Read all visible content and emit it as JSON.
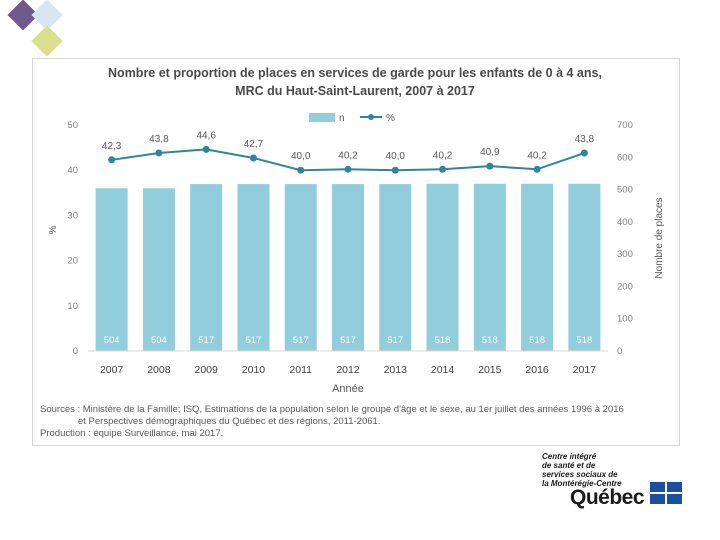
{
  "header": {
    "title_line1": "Nombre et proportion de places en services de garde pour les enfants de 0 à 4 ans,",
    "title_line2": "MRC du Haut-Saint-Laurent, 2007 à 2017"
  },
  "chart_data": {
    "type": "bar+line",
    "title": "Nombre et proportion de places en services de garde pour les enfants de 0 à 4 ans, MRC du Haut-Saint-Laurent, 2007 à 2017",
    "categories": [
      "2007",
      "2008",
      "2009",
      "2010",
      "2011",
      "2012",
      "2013",
      "2014",
      "2015",
      "2016",
      "2017"
    ],
    "series": [
      {
        "name": "n",
        "type": "bar",
        "axis": "right",
        "values": [
          504,
          504,
          517,
          517,
          517,
          517,
          517,
          518,
          518,
          518,
          518
        ],
        "labels": [
          "504",
          "504",
          "517",
          "517",
          "517",
          "517",
          "517",
          "518",
          "518",
          "518",
          "518"
        ],
        "color": "#92cddc"
      },
      {
        "name": "%",
        "type": "line",
        "axis": "left",
        "values": [
          42.3,
          43.8,
          44.6,
          42.7,
          40.0,
          40.2,
          40.0,
          40.2,
          40.9,
          40.2,
          43.8
        ],
        "labels": [
          "42,3",
          "43,8",
          "44,6",
          "42,7",
          "40,0",
          "40,2",
          "40,0",
          "40,2",
          "40,9",
          "40,2",
          "43,8"
        ],
        "color": "#31849b"
      }
    ],
    "xlabel": "Année",
    "ylabel_left": "%",
    "ylabel_right": "Nombre de places",
    "ylim_left": [
      0,
      50
    ],
    "yticks_left": [
      "0",
      "10",
      "20",
      "30",
      "40",
      "50"
    ],
    "ylim_right": [
      0,
      700
    ],
    "yticks_right": [
      "0",
      "100",
      "200",
      "300",
      "400",
      "500",
      "600",
      "700"
    ],
    "legend": [
      "n",
      "%"
    ],
    "legend_position": "top-center",
    "grid": false
  },
  "footer": {
    "sources_line1": "Sources : Ministère de la Famille; ISQ, Estimations de la population selon le groupe d'âge et le sexe, au 1er juillet des années 1996 à 2016",
    "sources_line2": "et Perspectives démographiques du Québec et des régions, 2011-2061.",
    "production": "Production : équipe Surveillance, mai 2017."
  },
  "logo": {
    "line1": "Centre intégré",
    "line2": "de santé et de",
    "line3": "services sociaux de",
    "line4": "la Montérégie-Centre",
    "wordmark": "Québec"
  },
  "colors": {
    "bar": "#92cddc",
    "line": "#31849b",
    "text": "#4a4a4a"
  }
}
